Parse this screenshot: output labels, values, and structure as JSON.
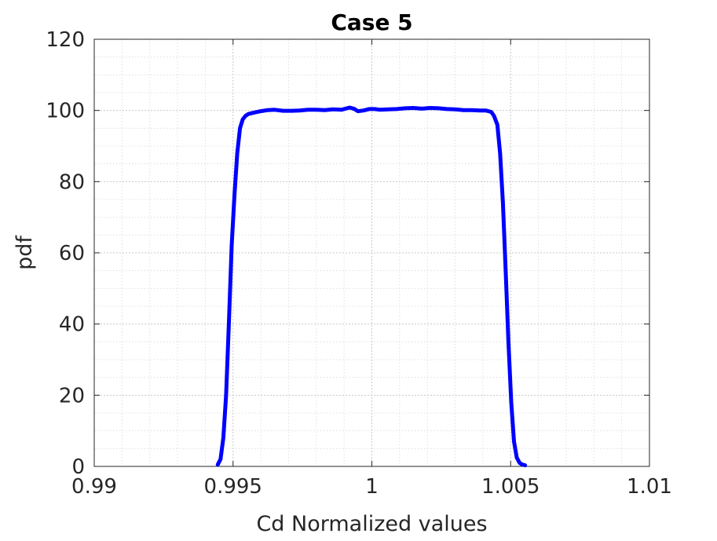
{
  "chart_data": {
    "type": "line",
    "title": "Case 5",
    "xlabel": "Cd Normalized values",
    "ylabel": "pdf",
    "xlim": [
      0.99,
      1.01
    ],
    "ylim": [
      0,
      120
    ],
    "xticks": [
      0.99,
      0.995,
      1,
      1.005,
      1.01
    ],
    "xtick_labels": [
      "0.99",
      "0.995",
      "1",
      "1.005",
      "1.01"
    ],
    "yticks": [
      0,
      20,
      40,
      60,
      80,
      100,
      120
    ],
    "ytick_labels": [
      "0",
      "20",
      "40",
      "60",
      "80",
      "100",
      "120"
    ],
    "grid": true,
    "minor_grid": true,
    "legend": "none",
    "series": [
      {
        "color": "#0000ff",
        "x": [
          0.99445,
          0.99455,
          0.99465,
          0.99475,
          0.99485,
          0.99495,
          0.99505,
          0.99515,
          0.99525,
          0.99535,
          0.99545,
          0.99555,
          0.99575,
          0.996,
          0.99625,
          0.9965,
          0.9968,
          0.9971,
          0.9974,
          0.9977,
          0.998,
          0.9983,
          0.9986,
          0.9989,
          0.9992,
          0.99935,
          0.9995,
          0.9997,
          0.9999,
          1.0001,
          1.0003,
          1.0006,
          1.0009,
          1.0012,
          1.0015,
          1.0018,
          1.0021,
          1.0024,
          1.0027,
          1.003,
          1.0033,
          1.0036,
          1.0039,
          1.0041,
          1.0043,
          1.0044,
          1.00452,
          1.00462,
          1.00472,
          1.00482,
          1.00492,
          1.00502,
          1.00512,
          1.00522,
          1.00532,
          1.00542,
          1.00552
        ],
        "y": [
          0.5,
          2,
          8,
          20,
          40,
          62,
          76,
          88,
          95,
          97.5,
          98.5,
          99,
          99.4,
          99.8,
          100.1,
          100.2,
          99.9,
          99.9,
          100,
          100.2,
          100.2,
          100.1,
          100.3,
          100.2,
          100.8,
          100.5,
          99.8,
          100,
          100.4,
          100.4,
          100.2,
          100.3,
          100.4,
          100.6,
          100.7,
          100.5,
          100.7,
          100.6,
          100.4,
          100.3,
          100.1,
          100.1,
          100,
          100,
          99.6,
          98.5,
          96,
          88,
          74,
          55,
          35,
          18,
          7,
          2.5,
          1,
          0.5,
          0.3
        ]
      }
    ]
  }
}
